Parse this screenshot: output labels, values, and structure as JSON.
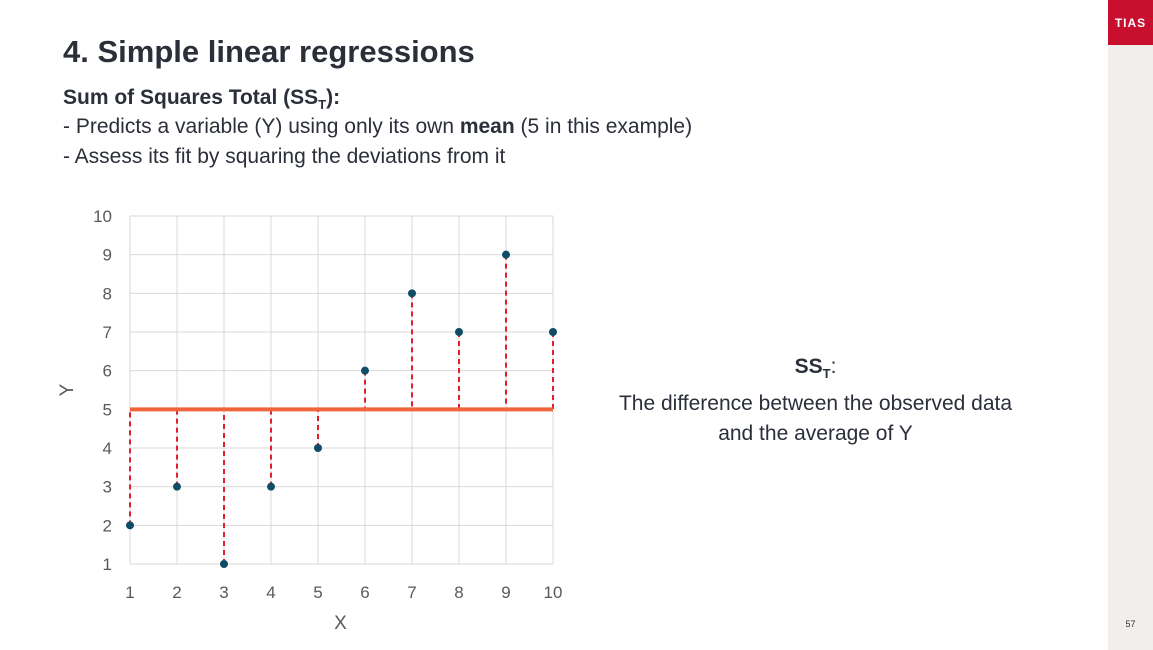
{
  "slide": {
    "title": "4. Simple linear regressions",
    "subtitle_main": "Sum of Squares Total (SS",
    "subtitle_sub": "T",
    "subtitle_end": "):",
    "bullet1_pre": "- Predicts a variable (Y) using only its own ",
    "bullet1_bold": "mean",
    "bullet1_post": " (5 in this example)",
    "bullet2": "- Assess its fit by squaring the deviations from it",
    "annotation_sst_main": "SS",
    "annotation_sst_sub": "T",
    "annotation_sst_end": ":",
    "annotation_line1": "The difference between the observed data",
    "annotation_line2": "and the average of Y",
    "logo_text": "TIAS",
    "page_number": "57"
  },
  "colors": {
    "logo_red": "#c8102e",
    "point": "#0e4d64",
    "mean_line": "#f0643c",
    "deviation": "#e0202a",
    "grid": "#d9d9d9"
  },
  "chart_data": {
    "type": "scatter",
    "xlabel": "X",
    "ylabel": "Y",
    "xlim": [
      1,
      10
    ],
    "ylim": [
      1,
      10
    ],
    "x_ticks": [
      1,
      2,
      3,
      4,
      5,
      6,
      7,
      8,
      9,
      10
    ],
    "y_ticks": [
      1,
      2,
      3,
      4,
      5,
      6,
      7,
      8,
      9,
      10
    ],
    "grid": true,
    "series": [
      {
        "x": [
          1,
          2,
          3,
          4,
          5,
          6,
          7,
          8,
          9,
          10
        ],
        "y": [
          2,
          3,
          1,
          3,
          4,
          6,
          8,
          7,
          9,
          7
        ]
      }
    ],
    "mean_line": 5,
    "deviation_lines": true
  }
}
